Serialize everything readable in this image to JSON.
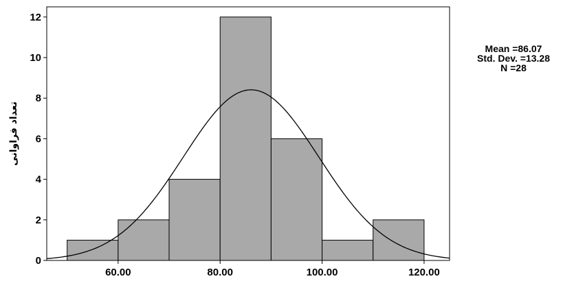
{
  "chart_data": {
    "type": "bar",
    "subtype": "histogram",
    "title": "",
    "xlabel": "",
    "ylabel": "تعداد فراوانی",
    "bins": [
      {
        "start": 50,
        "end": 60,
        "count": 1
      },
      {
        "start": 60,
        "end": 70,
        "count": 2
      },
      {
        "start": 70,
        "end": 80,
        "count": 4
      },
      {
        "start": 80,
        "end": 90,
        "count": 12
      },
      {
        "start": 90,
        "end": 100,
        "count": 6
      },
      {
        "start": 100,
        "end": 110,
        "count": 1
      },
      {
        "start": 110,
        "end": 120,
        "count": 2
      }
    ],
    "x_ticks": [
      {
        "value": 60,
        "label": "60.00"
      },
      {
        "value": 80,
        "label": "80.00"
      },
      {
        "value": 100,
        "label": "100.00"
      },
      {
        "value": 120,
        "label": "120.00"
      }
    ],
    "y_ticks": [
      {
        "value": 0,
        "label": "0"
      },
      {
        "value": 2,
        "label": "2"
      },
      {
        "value": 4,
        "label": "4"
      },
      {
        "value": 6,
        "label": "6"
      },
      {
        "value": 8,
        "label": "8"
      },
      {
        "value": 10,
        "label": "10"
      },
      {
        "value": 12,
        "label": "12"
      }
    ],
    "xlim": [
      46,
      125
    ],
    "ylim": [
      0,
      12.5
    ],
    "normal_curve": {
      "mean": 86.07,
      "std_dev": 13.28,
      "n": 28,
      "bin_width": 10
    },
    "grid": false,
    "bar_color": "#a9a9a9",
    "curve_color": "#000000"
  },
  "stats": {
    "mean_label": "Mean =86.07",
    "std_label": "Std. Dev. =13.28",
    "n_label": "N =28"
  }
}
